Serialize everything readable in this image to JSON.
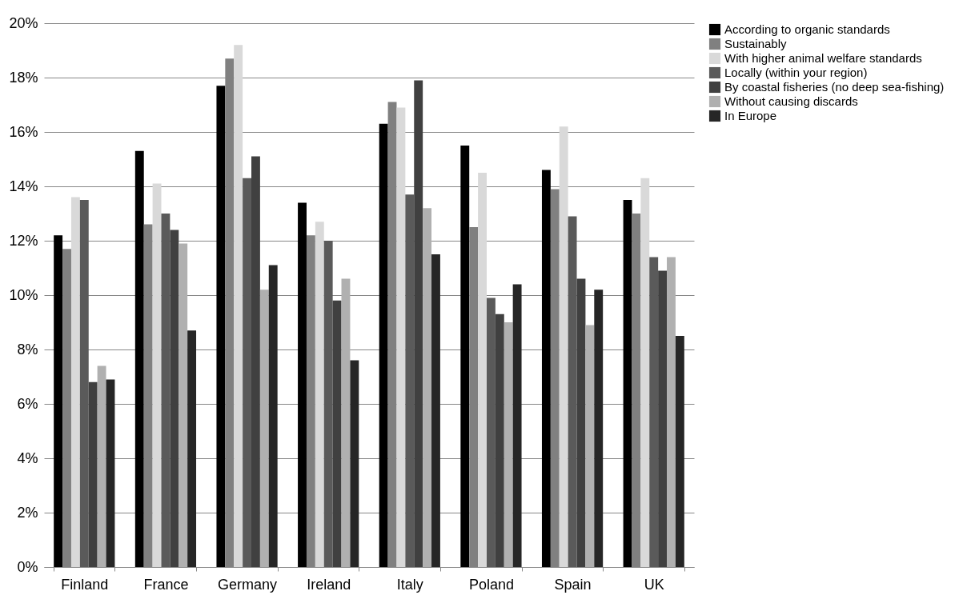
{
  "chart_data": {
    "type": "bar",
    "categories": [
      "Finland",
      "France",
      "Germany",
      "Ireland",
      "Italy",
      "Poland",
      "Spain",
      "UK"
    ],
    "series": [
      {
        "name": "According to organic standards",
        "color": "#000000",
        "values": [
          12.2,
          15.3,
          17.7,
          13.4,
          16.3,
          15.5,
          14.6,
          13.5
        ]
      },
      {
        "name": "Sustainably",
        "color": "#808080",
        "values": [
          11.7,
          12.6,
          18.7,
          12.2,
          17.1,
          12.5,
          13.9,
          13.0
        ]
      },
      {
        "name": "With higher animal welfare standards",
        "color": "#d9d9d9",
        "values": [
          13.6,
          14.1,
          19.2,
          12.7,
          16.9,
          14.5,
          16.2,
          14.3
        ]
      },
      {
        "name": "Locally (within your region)",
        "color": "#5a5a5a",
        "values": [
          13.5,
          13.0,
          14.3,
          12.0,
          13.7,
          9.9,
          12.9,
          11.4
        ]
      },
      {
        "name": "By coastal fisheries (no deep sea-fishing)",
        "color": "#404040",
        "values": [
          6.8,
          12.4,
          15.1,
          9.8,
          17.9,
          9.3,
          10.6,
          10.9
        ]
      },
      {
        "name": "Without causing discards",
        "color": "#b0b0b0",
        "values": [
          7.4,
          11.9,
          10.2,
          10.6,
          13.2,
          9.0,
          8.9,
          11.4
        ]
      },
      {
        "name": "In Europe",
        "color": "#262626",
        "values": [
          6.9,
          8.7,
          11.1,
          7.6,
          11.5,
          10.4,
          10.2,
          8.5
        ]
      }
    ],
    "ylim": [
      0,
      20
    ],
    "yticks": [
      {
        "value": 0,
        "label": "0%"
      },
      {
        "value": 2,
        "label": "2%"
      },
      {
        "value": 4,
        "label": "4%"
      },
      {
        "value": 6,
        "label": "6%"
      },
      {
        "value": 8,
        "label": "8%"
      },
      {
        "value": 10,
        "label": "10%"
      },
      {
        "value": 12,
        "label": "12%"
      },
      {
        "value": 14,
        "label": "14%"
      },
      {
        "value": 16,
        "label": "16%"
      },
      {
        "value": 18,
        "label": "18%"
      },
      {
        "value": 20,
        "label": "20%"
      }
    ],
    "grid": "y",
    "legend": "right"
  }
}
